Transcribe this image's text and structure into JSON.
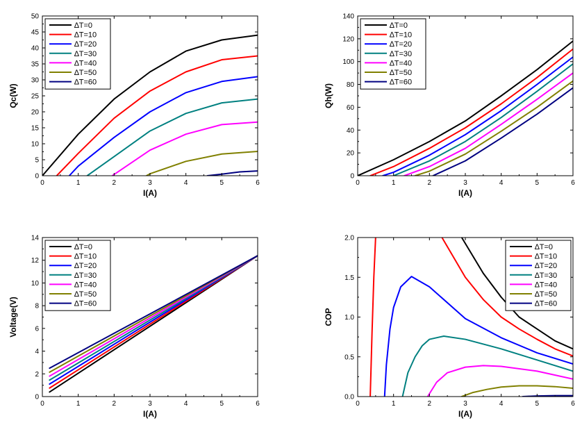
{
  "legend_labels": [
    "∆T=0",
    "∆T=10",
    "∆T=20",
    "∆T=30",
    "∆T=40",
    "∆T=50",
    "∆T=60"
  ],
  "series_colors": [
    "#000000",
    "#ff0000",
    "#0000ff",
    "#008080",
    "#ff00ff",
    "#808000",
    "#000080"
  ],
  "chart_data": [
    {
      "type": "line",
      "xlabel": "I(A)",
      "ylabel": "Qc(W)",
      "xlim": [
        0,
        6
      ],
      "ylim": [
        0,
        50
      ],
      "xticks": [
        0,
        1,
        2,
        3,
        4,
        5,
        6
      ],
      "yticks": [
        0,
        5,
        10,
        15,
        20,
        25,
        30,
        35,
        40,
        45,
        50
      ],
      "legend_position": "top-left",
      "series": [
        {
          "name": "∆T=0",
          "x": [
            0,
            1,
            2,
            3,
            4,
            5,
            6
          ],
          "y": [
            0,
            13,
            24,
            32.5,
            39,
            42.5,
            44
          ]
        },
        {
          "name": "∆T=10",
          "x": [
            0.4,
            1,
            2,
            3,
            4,
            5,
            6
          ],
          "y": [
            0,
            7,
            18,
            26.5,
            32.5,
            36.3,
            37.5
          ]
        },
        {
          "name": "∆T=20",
          "x": [
            0.75,
            1,
            2,
            3,
            4,
            5,
            6
          ],
          "y": [
            0,
            3,
            12,
            20,
            26,
            29.5,
            31
          ]
        },
        {
          "name": "∆T=30",
          "x": [
            1.25,
            2,
            3,
            4,
            5,
            6
          ],
          "y": [
            0,
            6,
            14,
            19.5,
            22.8,
            24
          ]
        },
        {
          "name": "∆T=40",
          "x": [
            1.95,
            2,
            3,
            4,
            5,
            6
          ],
          "y": [
            0,
            0.4,
            8,
            13,
            16,
            16.8
          ]
        },
        {
          "name": "∆T=50",
          "x": [
            2.9,
            3,
            4,
            5,
            6
          ],
          "y": [
            0,
            0.6,
            4.5,
            6.8,
            7.6
          ]
        },
        {
          "name": "∆T=60",
          "x": [
            4.6,
            5,
            5.5,
            6
          ],
          "y": [
            0,
            0.5,
            1.2,
            1.5
          ]
        }
      ]
    },
    {
      "type": "line",
      "xlabel": "I(A)",
      "ylabel": "Qh(W)",
      "xlim": [
        0,
        6
      ],
      "ylim": [
        0,
        140
      ],
      "xticks": [
        0,
        1,
        2,
        3,
        4,
        5,
        6
      ],
      "yticks": [
        0,
        20,
        40,
        60,
        80,
        100,
        120,
        140
      ],
      "legend_position": "top-left",
      "series": [
        {
          "name": "∆T=0",
          "x": [
            0,
            1,
            2,
            3,
            4,
            5,
            6
          ],
          "y": [
            0,
            14,
            30,
            48,
            70,
            93,
            118
          ]
        },
        {
          "name": "∆T=10",
          "x": [
            0.35,
            1,
            2,
            3,
            4,
            5,
            6
          ],
          "y": [
            0,
            8,
            24,
            42,
            63,
            86,
            111
          ]
        },
        {
          "name": "∆T=20",
          "x": [
            0.7,
            1,
            2,
            3,
            4,
            5,
            6
          ],
          "y": [
            0,
            3,
            18,
            36,
            57,
            80,
            104
          ]
        },
        {
          "name": "∆T=30",
          "x": [
            1.0,
            2,
            3,
            4,
            5,
            6
          ],
          "y": [
            0,
            13,
            30,
            51,
            74,
            98
          ]
        },
        {
          "name": "∆T=40",
          "x": [
            1.3,
            2,
            3,
            4,
            5,
            6
          ],
          "y": [
            0,
            8,
            24,
            45,
            67,
            90
          ]
        },
        {
          "name": "∆T=50",
          "x": [
            1.6,
            2,
            3,
            4,
            5,
            6
          ],
          "y": [
            0,
            4,
            19,
            39,
            60,
            83
          ]
        },
        {
          "name": "∆T=60",
          "x": [
            2.1,
            3,
            4,
            5,
            6
          ],
          "y": [
            0,
            13,
            33,
            54,
            77
          ]
        }
      ]
    },
    {
      "type": "line",
      "xlabel": "I(A)",
      "ylabel": "Voltage(V)",
      "xlim": [
        0,
        6
      ],
      "ylim": [
        0,
        14
      ],
      "xticks": [
        0,
        1,
        2,
        3,
        4,
        5,
        6
      ],
      "yticks": [
        0,
        2,
        4,
        6,
        8,
        10,
        12,
        14
      ],
      "legend_position": "top-left",
      "series": [
        {
          "name": "∆T=0",
          "x": [
            0.2,
            6
          ],
          "y": [
            0.4,
            12.4
          ]
        },
        {
          "name": "∆T=10",
          "x": [
            0.2,
            6
          ],
          "y": [
            0.75,
            12.4
          ]
        },
        {
          "name": "∆T=20",
          "x": [
            0.2,
            6
          ],
          "y": [
            1.1,
            12.4
          ]
        },
        {
          "name": "∆T=30",
          "x": [
            0.2,
            6
          ],
          "y": [
            1.45,
            12.4
          ]
        },
        {
          "name": "∆T=40",
          "x": [
            0.2,
            6
          ],
          "y": [
            1.8,
            12.4
          ]
        },
        {
          "name": "∆T=50",
          "x": [
            0.2,
            6
          ],
          "y": [
            2.15,
            12.4
          ]
        },
        {
          "name": "∆T=60",
          "x": [
            0.2,
            6
          ],
          "y": [
            2.5,
            12.4
          ]
        }
      ]
    },
    {
      "type": "line",
      "xlabel": "I(A)",
      "ylabel": "COP",
      "xlim": [
        0,
        6
      ],
      "ylim": [
        0,
        2.0
      ],
      "xticks": [
        0,
        1,
        2,
        3,
        4,
        5,
        6
      ],
      "yticks": [
        0.0,
        0.5,
        1.0,
        1.5,
        2.0
      ],
      "legend_position": "top-right",
      "series": [
        {
          "name": "∆T=0",
          "x": [
            2.9,
            3.5,
            4,
            4.5,
            5,
            5.5,
            6
          ],
          "y": [
            2.0,
            1.55,
            1.25,
            1.0,
            0.85,
            0.7,
            0.6
          ]
        },
        {
          "name": "∆T=10",
          "x": [
            0.35,
            0.4,
            0.45,
            0.5
          ],
          "y": [
            0,
            0.8,
            1.5,
            2.0
          ]
        },
        {
          "name": "∆T=10",
          "x": [
            2.35,
            3,
            3.5,
            4,
            4.5,
            5,
            5.5,
            6
          ],
          "y": [
            2.0,
            1.5,
            1.22,
            1.0,
            0.85,
            0.72,
            0.6,
            0.51
          ]
        },
        {
          "name": "∆T=20",
          "x": [
            0.75,
            0.8,
            0.9,
            1.0,
            1.2,
            1.5,
            2.0,
            3.0,
            4.0,
            5.0,
            6.0
          ],
          "y": [
            0,
            0.4,
            0.85,
            1.12,
            1.38,
            1.51,
            1.38,
            0.98,
            0.74,
            0.55,
            0.41
          ]
        },
        {
          "name": "∆T=30",
          "x": [
            1.25,
            1.4,
            1.6,
            1.8,
            2.0,
            2.4,
            3.0,
            4.0,
            5.0,
            6.0
          ],
          "y": [
            0,
            0.3,
            0.5,
            0.64,
            0.72,
            0.76,
            0.72,
            0.6,
            0.46,
            0.32
          ]
        },
        {
          "name": "∆T=40",
          "x": [
            1.95,
            2.2,
            2.5,
            3.0,
            3.5,
            4.0,
            5.0,
            6.0
          ],
          "y": [
            0,
            0.18,
            0.3,
            0.37,
            0.39,
            0.38,
            0.32,
            0.22
          ]
        },
        {
          "name": "∆T=50",
          "x": [
            2.9,
            3.2,
            3.6,
            4.0,
            4.5,
            5.0,
            5.5,
            6.0
          ],
          "y": [
            0,
            0.05,
            0.09,
            0.12,
            0.135,
            0.135,
            0.125,
            0.105
          ]
        },
        {
          "name": "∆T=60",
          "x": [
            4.6,
            5.0,
            5.5,
            6.0
          ],
          "y": [
            0,
            0.008,
            0.012,
            0.012
          ]
        }
      ]
    }
  ]
}
